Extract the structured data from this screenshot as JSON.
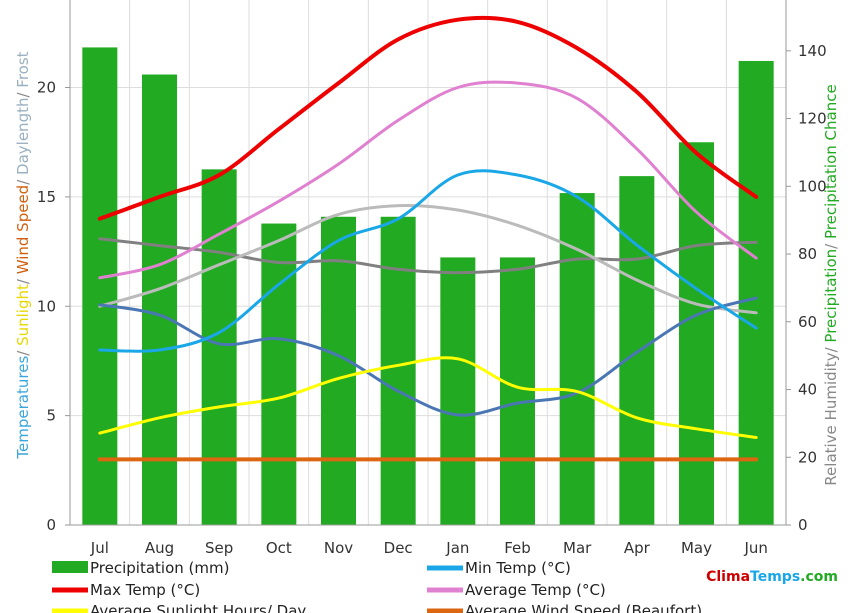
{
  "chart_data": {
    "type": "bar",
    "categories": [
      "Jul",
      "Aug",
      "Sep",
      "Oct",
      "Nov",
      "Dec",
      "Jan",
      "Feb",
      "Mar",
      "Apr",
      "May",
      "Jun"
    ],
    "left_axis": {
      "ylim": [
        0,
        24
      ],
      "ticks": [
        0,
        5,
        10,
        15,
        20
      ],
      "label_parts": [
        {
          "text": "Temperatures",
          "color": "#3aa6dd"
        },
        {
          "text": "/ ",
          "color": "#888888"
        },
        {
          "text": "Sunlight",
          "color": "#e6d800"
        },
        {
          "text": "/ ",
          "color": "#888888"
        },
        {
          "text": "Wind Speed",
          "color": "#d06010"
        },
        {
          "text": "/ ",
          "color": "#888888"
        },
        {
          "text": "Daylength",
          "color": "#9ab0c0"
        },
        {
          "text": "/ ",
          "color": "#888888"
        },
        {
          "text": "Frost",
          "color": "#9ab0c0"
        }
      ]
    },
    "right_axis": {
      "ylim": [
        0,
        155
      ],
      "ticks": [
        0,
        20,
        40,
        60,
        80,
        100,
        120,
        140
      ],
      "label_parts": [
        {
          "text": "Relative Humidity",
          "color": "#888888"
        },
        {
          "text": "/ ",
          "color": "#888888"
        },
        {
          "text": "Precipitation",
          "color": "#22aa22"
        },
        {
          "text": "/ ",
          "color": "#888888"
        },
        {
          "text": "Precipitation Chance",
          "color": "#22aa22"
        }
      ]
    },
    "bars": {
      "name": "Precipitation (mm)",
      "axis": "right",
      "color": "#22aa22",
      "values": [
        141,
        133,
        105,
        89,
        91,
        91,
        79,
        79,
        98,
        103,
        113,
        137
      ]
    },
    "series": [
      {
        "name": "Max Temp (°C)",
        "axis": "left",
        "color": "#ee0000",
        "width": 4,
        "values": [
          14.0,
          15.0,
          16.0,
          18.1,
          20.2,
          22.2,
          23.1,
          23.0,
          21.8,
          19.8,
          17.0,
          15.0
        ]
      },
      {
        "name": "Average Temp (°C)",
        "axis": "left",
        "color": "#e080d0",
        "width": 3,
        "values": [
          11.3,
          11.9,
          13.3,
          14.8,
          16.5,
          18.5,
          20.0,
          20.2,
          19.5,
          17.2,
          14.3,
          12.2
        ]
      },
      {
        "name": "Min Temp (°C)",
        "axis": "left",
        "color": "#1aa7e8",
        "width": 3,
        "values": [
          8.0,
          8.0,
          8.8,
          11.0,
          13.0,
          14.0,
          16.0,
          16.0,
          15.0,
          12.8,
          10.8,
          9.0
        ]
      },
      {
        "name": "Daylength",
        "axis": "left",
        "color": "#bbbbbb",
        "width": 3,
        "values": [
          10.0,
          10.8,
          11.9,
          13.0,
          14.2,
          14.6,
          14.4,
          13.7,
          12.6,
          11.2,
          10.1,
          9.7
        ]
      },
      {
        "name": "Relative Humidity",
        "axis": "right",
        "color": "#808080",
        "width": 3,
        "values": [
          84.5,
          82.5,
          80.5,
          77.5,
          78,
          75.5,
          74.5,
          75.5,
          78.5,
          78.5,
          82.5,
          83.5
        ]
      },
      {
        "name": "Precipitation Chance",
        "axis": "right",
        "color": "#4a77b4",
        "width": 3,
        "values": [
          65,
          62,
          53.5,
          55,
          50,
          39.5,
          32.5,
          36,
          39,
          51,
          62,
          67
        ]
      },
      {
        "name": "Average Sunlight Hours/ Day",
        "axis": "left",
        "color": "#ffff00",
        "width": 3,
        "values": [
          4.2,
          4.9,
          5.4,
          5.8,
          6.7,
          7.3,
          7.6,
          6.3,
          6.1,
          4.9,
          4.4,
          4.0
        ]
      },
      {
        "name": "Average Wind Speed (Beaufort)",
        "axis": "left",
        "color": "#dd6611",
        "width": 4,
        "values": [
          3,
          3,
          3,
          3,
          3,
          3,
          3,
          3,
          3,
          3,
          3,
          3
        ]
      }
    ],
    "legend": {
      "placement": "bottom",
      "entries": [
        {
          "label": "Precipitation (mm)",
          "color": "#22aa22",
          "kind": "box"
        },
        {
          "label": "Min Temp (°C)",
          "color": "#1aa7e8",
          "kind": "line"
        },
        {
          "label": "Max Temp (°C)",
          "color": "#ee0000",
          "kind": "line"
        },
        {
          "label": "Average Temp (°C)",
          "color": "#e080d0",
          "kind": "line"
        },
        {
          "label": "Average Sunlight Hours/ Day",
          "color": "#ffff00",
          "kind": "line"
        },
        {
          "label": "Average Wind Speed (Beaufort)",
          "color": "#dd6611",
          "kind": "line"
        }
      ]
    },
    "grid": true
  },
  "brand": {
    "parts": [
      {
        "text": "Clima",
        "color": "#cc0000"
      },
      {
        "text": "Temps",
        "color": "#1aa7e8"
      },
      {
        "text": ".com",
        "color": "#22aa22"
      }
    ]
  }
}
